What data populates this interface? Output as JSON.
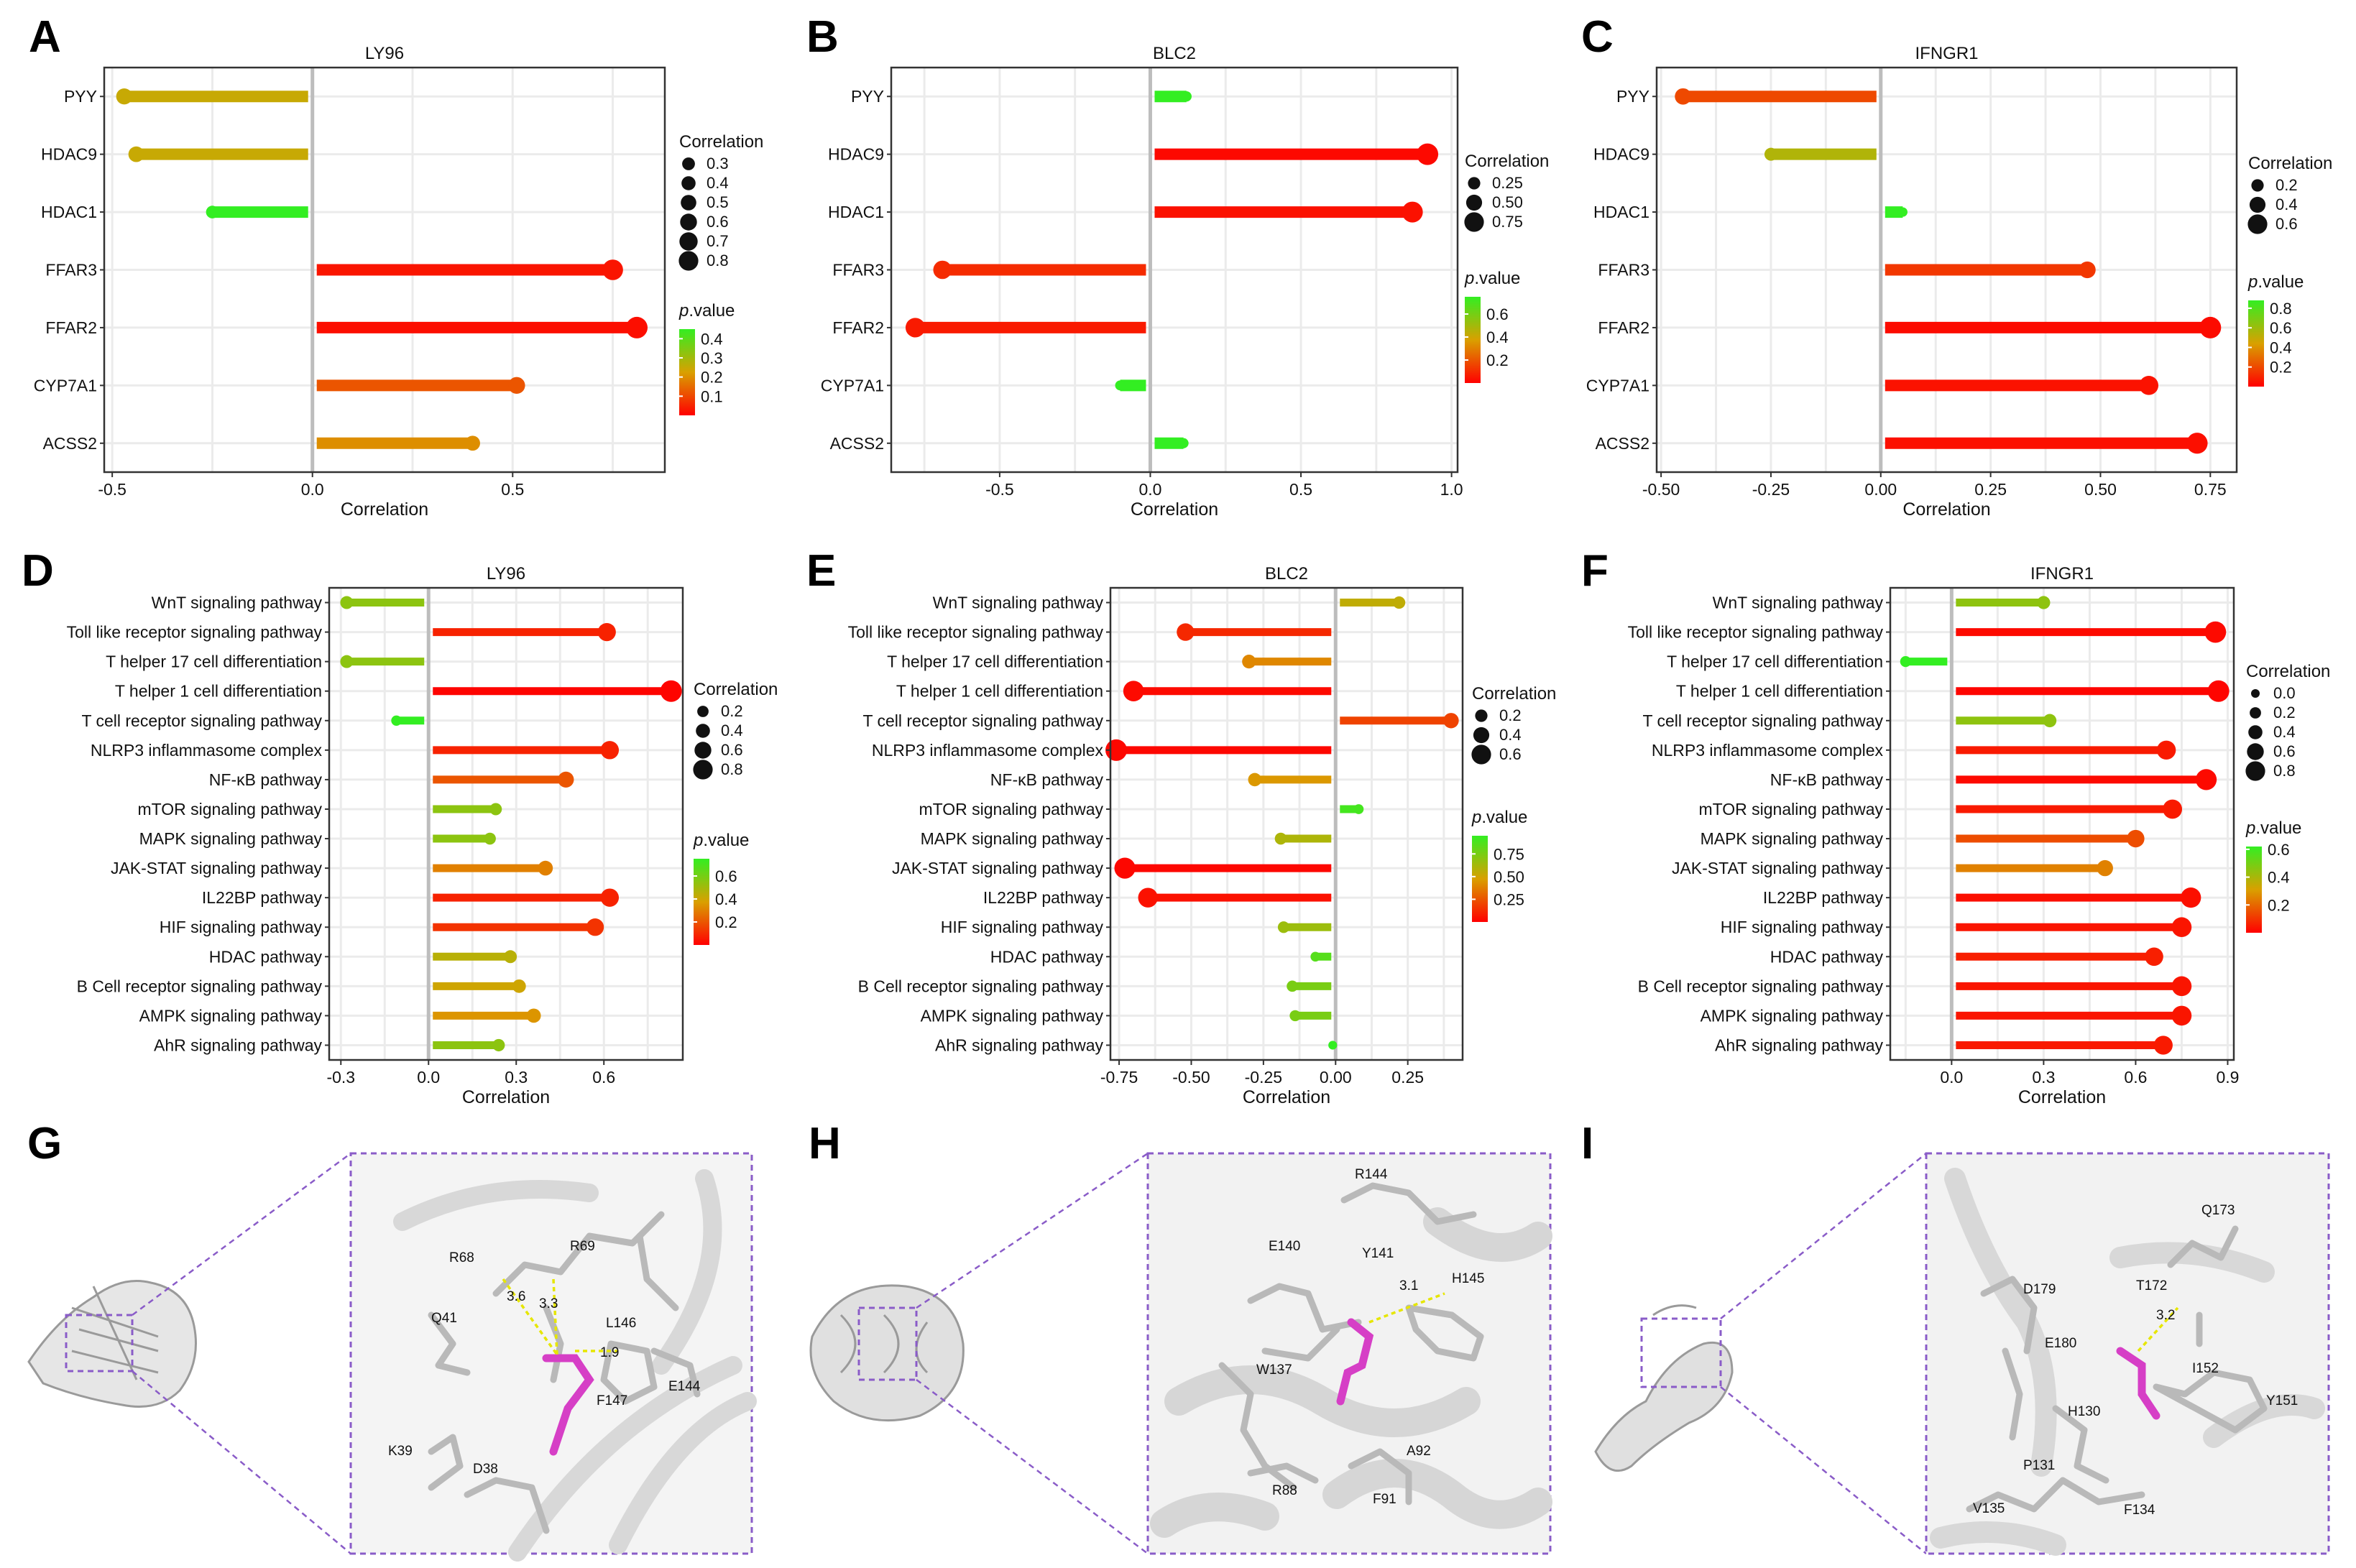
{
  "colors": {
    "low_p": "#ff0000",
    "mid_p": "#d9a000",
    "high_p": "#33ee22",
    "ligand": "#d63fc6",
    "box": "#8a5cc8"
  },
  "chart_data": [
    {
      "id": "A",
      "letter": "A",
      "type": "lollipop",
      "title": "LY96",
      "categories": [
        "PYY",
        "HDAC9",
        "HDAC1",
        "FFAR3",
        "FFAR2",
        "CYP7A1",
        "ACSS2"
      ],
      "values": [
        -0.47,
        -0.44,
        -0.25,
        0.75,
        0.81,
        0.51,
        0.4
      ],
      "pvalues": [
        0.25,
        0.25,
        0.45,
        0.03,
        0.02,
        0.12,
        0.2
      ],
      "xlim": [
        -0.52,
        0.88
      ],
      "xticks": [
        -0.5,
        0.0,
        0.5
      ],
      "tick_labels": [
        "-0.5",
        "0.0",
        "0.5"
      ],
      "xlabel": "Correlation",
      "grid": true,
      "legend_size": {
        "title": "Correlation",
        "values": [
          0.3,
          0.4,
          0.5,
          0.6,
          0.7,
          0.8
        ],
        "labels": [
          "0.3",
          "0.4",
          "0.5",
          "0.6",
          "0.7",
          "0.8"
        ]
      },
      "legend_color": {
        "title_p": "p",
        "title_rest": ".value",
        "pmax": 0.45,
        "labels": [
          "0.4",
          "0.3",
          "0.2",
          "0.1"
        ],
        "values": [
          0.4,
          0.3,
          0.2,
          0.1
        ]
      }
    },
    {
      "id": "B",
      "letter": "B",
      "type": "lollipop",
      "title": "BLC2",
      "categories": [
        "PYY",
        "HDAC9",
        "HDAC1",
        "FFAR3",
        "FFAR2",
        "CYP7A1",
        "ACSS2"
      ],
      "values": [
        0.12,
        0.92,
        0.87,
        -0.69,
        -0.78,
        -0.1,
        0.11
      ],
      "pvalues": [
        0.75,
        0.02,
        0.04,
        0.1,
        0.06,
        0.75,
        0.75
      ],
      "xlim": [
        -0.86,
        1.02
      ],
      "xticks": [
        -0.5,
        0.0,
        0.5,
        1.0
      ],
      "tick_labels": [
        "-0.5",
        "0.0",
        "0.5",
        "1.0"
      ],
      "xlabel": "Correlation",
      "grid": true,
      "legend_size": {
        "title": "Correlation",
        "values": [
          0.25,
          0.5,
          0.75
        ],
        "labels": [
          "0.25",
          "0.50",
          "0.75"
        ]
      },
      "legend_color": {
        "title_p": "p",
        "title_rest": ".value",
        "pmax": 0.75,
        "labels": [
          "0.6",
          "0.4",
          "0.2"
        ],
        "values": [
          0.6,
          0.4,
          0.2
        ]
      }
    },
    {
      "id": "C",
      "letter": "C",
      "type": "lollipop",
      "title": "IFNGR1",
      "categories": [
        "PYY",
        "HDAC9",
        "HDAC1",
        "FFAR3",
        "FFAR2",
        "CYP7A1",
        "ACSS2"
      ],
      "values": [
        -0.45,
        -0.25,
        0.05,
        0.47,
        0.75,
        0.61,
        0.72
      ],
      "pvalues": [
        0.2,
        0.55,
        0.88,
        0.15,
        0.03,
        0.05,
        0.04
      ],
      "xlim": [
        -0.51,
        0.81
      ],
      "xticks": [
        -0.5,
        -0.25,
        0.0,
        0.25,
        0.5,
        0.75
      ],
      "tick_labels": [
        "-0.50",
        "-0.25",
        "0.00",
        "0.25",
        "0.50",
        "0.75"
      ],
      "xlabel": "Correlation",
      "grid": true,
      "legend_size": {
        "title": "Correlation",
        "values": [
          0.2,
          0.4,
          0.6
        ],
        "labels": [
          "0.2",
          "0.4",
          "0.6"
        ]
      },
      "legend_color": {
        "title_p": "p",
        "title_rest": ".value",
        "pmax": 0.88,
        "labels": [
          "0.8",
          "0.6",
          "0.4",
          "0.2"
        ],
        "values": [
          0.8,
          0.6,
          0.4,
          0.2
        ]
      }
    },
    {
      "id": "D",
      "letter": "D",
      "type": "lollipop",
      "title": "LY96",
      "categories": [
        "WnT signaling pathway",
        "Toll like receptor signaling pathway",
        "T helper 17 cell differentiation",
        "T helper 1 cell differentiation",
        "T cell receptor signaling pathway",
        "NLRP3 inflammasome complex",
        "NF-κB pathway",
        "mTOR signaling pathway",
        "MAPK signaling pathway",
        "JAK-STAT signaling pathway",
        "IL22BP pathway",
        "HIF signaling pathway",
        "HDAC pathway",
        "B Cell receptor signaling pathway",
        "AMPK signaling pathway",
        "AhR signaling pathway"
      ],
      "values": [
        -0.28,
        0.61,
        -0.28,
        0.83,
        -0.11,
        0.62,
        0.47,
        0.23,
        0.21,
        0.4,
        0.62,
        0.57,
        0.28,
        0.31,
        0.36,
        0.24
      ],
      "pvalues": [
        0.55,
        0.08,
        0.55,
        0.01,
        0.75,
        0.08,
        0.2,
        0.55,
        0.55,
        0.3,
        0.08,
        0.12,
        0.45,
        0.4,
        0.35,
        0.55
      ],
      "xlim": [
        -0.34,
        0.87
      ],
      "xticks": [
        -0.3,
        0.0,
        0.3,
        0.6
      ],
      "tick_labels": [
        "-0.3",
        "0.0",
        "0.3",
        "0.6"
      ],
      "xlabel": "Correlation",
      "grid": true,
      "legend_size": {
        "title": "Correlation",
        "values": [
          0.2,
          0.4,
          0.6,
          0.8
        ],
        "labels": [
          "0.2",
          "0.4",
          "0.6",
          "0.8"
        ]
      },
      "legend_color": {
        "title_p": "p",
        "title_rest": ".value",
        "pmax": 0.75,
        "labels": [
          "0.6",
          "0.4",
          "0.2"
        ],
        "values": [
          0.6,
          0.4,
          0.2
        ]
      }
    },
    {
      "id": "E",
      "letter": "E",
      "type": "lollipop",
      "title": "BLC2",
      "categories": [
        "WnT signaling pathway",
        "Toll like receptor signaling pathway",
        "T helper 17 cell differentiation",
        "T helper 1 cell differentiation",
        "T cell receptor signaling pathway",
        "NLRP3 inflammasome complex",
        "NF-κB pathway",
        "mTOR signaling pathway",
        "MAPK signaling pathway",
        "JAK-STAT signaling pathway",
        "IL22BP pathway",
        "HIF signaling pathway",
        "HDAC pathway",
        "B Cell receptor signaling pathway",
        "AMPK signaling pathway",
        "AhR signaling pathway"
      ],
      "values": [
        0.22,
        -0.52,
        -0.3,
        -0.7,
        0.4,
        -0.76,
        -0.28,
        0.08,
        -0.19,
        -0.73,
        -0.65,
        -0.18,
        -0.07,
        -0.15,
        -0.14,
        -0.01
      ],
      "pvalues": [
        0.55,
        0.12,
        0.4,
        0.03,
        0.2,
        0.02,
        0.45,
        0.9,
        0.6,
        0.02,
        0.05,
        0.65,
        0.85,
        0.75,
        0.75,
        0.95
      ],
      "xlim": [
        -0.78,
        0.44
      ],
      "xticks": [
        -0.75,
        -0.5,
        -0.25,
        0.0,
        0.25
      ],
      "tick_labels": [
        "-0.75",
        "-0.50",
        "-0.25",
        "0.00",
        "0.25"
      ],
      "xlabel": "Correlation",
      "grid": true,
      "legend_size": {
        "title": "Correlation",
        "values": [
          0.2,
          0.4,
          0.6
        ],
        "labels": [
          "0.2",
          "0.4",
          "0.6"
        ]
      },
      "legend_color": {
        "title_p": "p",
        "title_rest": ".value",
        "pmax": 0.95,
        "labels": [
          "0.75",
          "0.50",
          "0.25"
        ],
        "values": [
          0.75,
          0.5,
          0.25
        ]
      }
    },
    {
      "id": "F",
      "letter": "F",
      "type": "lollipop",
      "title": "IFNGR1",
      "categories": [
        "WnT signaling pathway",
        "Toll like receptor signaling pathway",
        "T helper 17 cell differentiation",
        "T helper 1 cell differentiation",
        "T cell receptor signaling pathway",
        "NLRP3 inflammasome complex",
        "NF-κB pathway",
        "mTOR signaling pathway",
        "MAPK signaling pathway",
        "JAK-STAT signaling pathway",
        "IL22BP pathway",
        "HIF signaling pathway",
        "HDAC pathway",
        "B Cell receptor signaling pathway",
        "AMPK signaling pathway",
        "AhR signaling pathway"
      ],
      "values": [
        0.3,
        0.86,
        -0.15,
        0.87,
        0.32,
        0.7,
        0.83,
        0.72,
        0.6,
        0.5,
        0.78,
        0.75,
        0.66,
        0.75,
        0.75,
        0.69
      ],
      "pvalues": [
        0.45,
        0.02,
        0.62,
        0.01,
        0.45,
        0.05,
        0.02,
        0.05,
        0.15,
        0.25,
        0.03,
        0.04,
        0.06,
        0.04,
        0.04,
        0.05
      ],
      "xlim": [
        -0.2,
        0.92
      ],
      "xticks": [
        0.0,
        0.3,
        0.6,
        0.9
      ],
      "tick_labels": [
        "0.0",
        "0.3",
        "0.6",
        "0.9"
      ],
      "xlabel": "Correlation",
      "grid": true,
      "legend_size": {
        "title": "Correlation",
        "values": [
          0.0,
          0.2,
          0.4,
          0.6,
          0.8
        ],
        "labels": [
          "0.0",
          "0.2",
          "0.4",
          "0.6",
          "0.8"
        ]
      },
      "legend_color": {
        "title_p": "p",
        "title_rest": ".value",
        "pmax": 0.62,
        "labels": [
          "0.6",
          "0.4",
          "0.2"
        ],
        "values": [
          0.6,
          0.4,
          0.2
        ]
      }
    }
  ],
  "docking_panels": [
    {
      "letter": "G",
      "residues": [
        "R68",
        "R69",
        "Q41",
        "L146",
        "F147",
        "E144",
        "K39",
        "D38"
      ],
      "distances": [
        "3.6",
        "3.3",
        "1.9"
      ]
    },
    {
      "letter": "H",
      "residues": [
        "R144",
        "E140",
        "Y141",
        "H145",
        "W137",
        "A92",
        "R88",
        "F91"
      ],
      "distances": [
        "3.1"
      ]
    },
    {
      "letter": "I",
      "residues": [
        "Q173",
        "D179",
        "T172",
        "E180",
        "I152",
        "Y151",
        "H130",
        "P131",
        "V135",
        "F134"
      ],
      "distances": [
        "3.2"
      ]
    }
  ]
}
